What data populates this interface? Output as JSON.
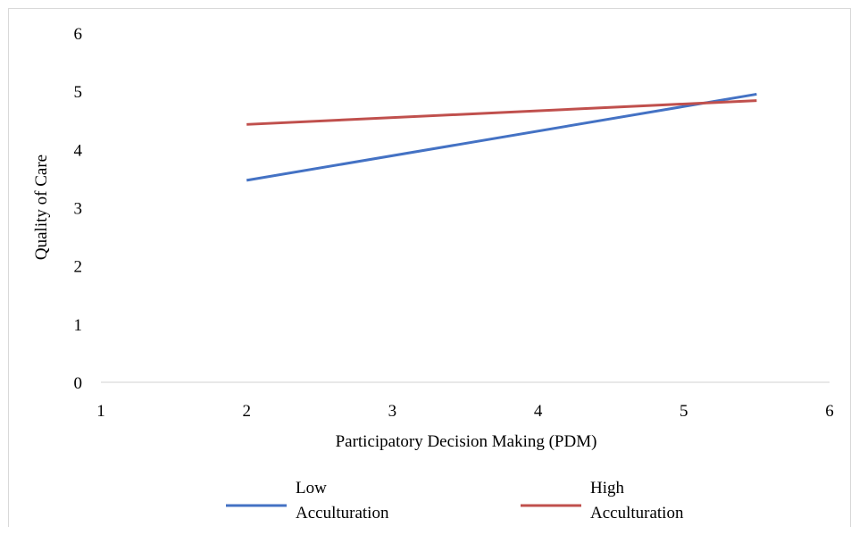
{
  "chart_data": {
    "type": "line",
    "title": "",
    "xlabel": "Participatory Decision Making (PDM)",
    "ylabel": "Quality of Care",
    "xlim": [
      1,
      6
    ],
    "ylim": [
      0,
      6
    ],
    "xticks": [
      "1",
      "2",
      "3",
      "4",
      "5",
      "6"
    ],
    "yticks": [
      "0",
      "1",
      "2",
      "3",
      "4",
      "5",
      "6"
    ],
    "grid": false,
    "legend_position": "bottom",
    "series": [
      {
        "name_line1": "Low",
        "name_line2": "Acculturation",
        "color": "#4472c4",
        "x": [
          2,
          5.5
        ],
        "y": [
          3.47,
          4.95
        ]
      },
      {
        "name_line1": "High",
        "name_line2": "Acculturation",
        "color": "#c0504d",
        "x": [
          2,
          5.5
        ],
        "y": [
          4.43,
          4.84
        ]
      }
    ]
  }
}
